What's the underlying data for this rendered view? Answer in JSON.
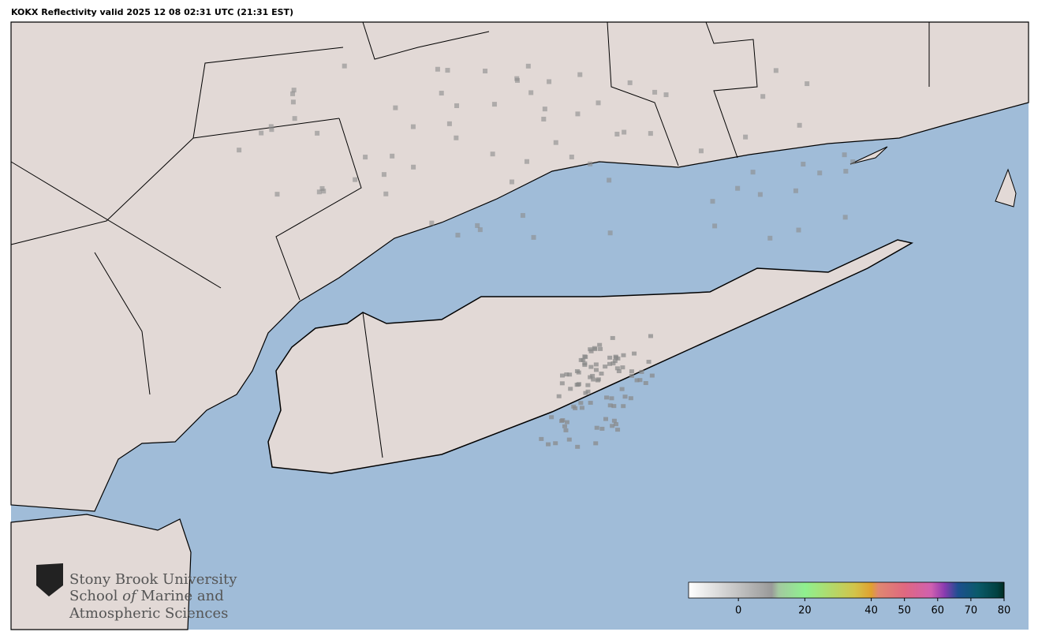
{
  "title": "KOKX Reflectivity valid 2025 12 08 02:31 UTC (21:31 EST)",
  "logo": {
    "line1": "Stony Brook University",
    "line2a": "School",
    "line2b": "of",
    "line2c": "Marine and",
    "line3": "Atmospheric Sciences"
  },
  "colorbar": {
    "lim": [
      -15,
      80
    ],
    "ticks": [
      0,
      20,
      40,
      50,
      60,
      70,
      80
    ],
    "stops": [
      {
        "value": -15,
        "color": "#ffffff"
      },
      {
        "value": 10,
        "color": "#999999"
      },
      {
        "value": 12,
        "color": "#a3c8a0"
      },
      {
        "value": 20,
        "color": "#8ff08f"
      },
      {
        "value": 35,
        "color": "#d2c44a"
      },
      {
        "value": 40,
        "color": "#e0a030"
      },
      {
        "value": 42,
        "color": "#e08870"
      },
      {
        "value": 50,
        "color": "#e06880"
      },
      {
        "value": 58,
        "color": "#d060b0"
      },
      {
        "value": 62,
        "color": "#8a3ab0"
      },
      {
        "value": 66,
        "color": "#1d4f90"
      },
      {
        "value": 72,
        "color": "#0a5a6a"
      },
      {
        "value": 78,
        "color": "#004040"
      },
      {
        "value": 80,
        "color": "#002a20"
      }
    ]
  }
}
